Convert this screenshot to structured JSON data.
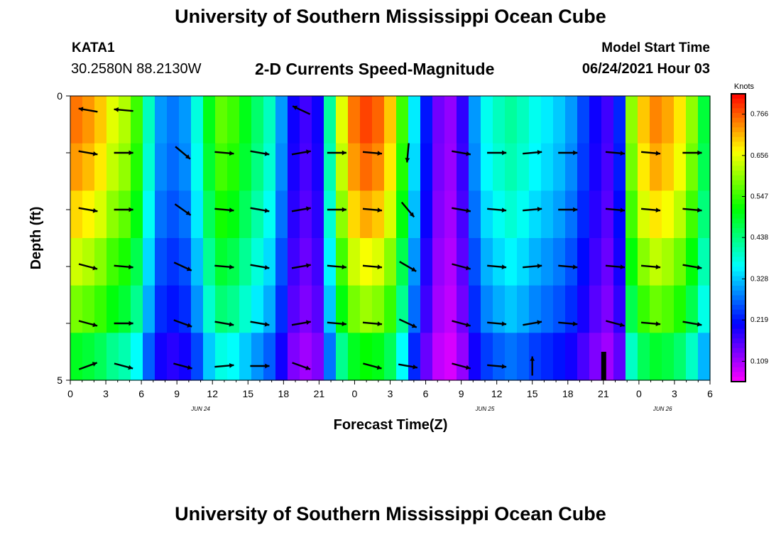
{
  "titles": {
    "top": "University of Southern Mississippi Ocean Cube",
    "bottom": "University of Southern Mississippi Ocean Cube",
    "station": "KATA1",
    "coords": "30.2580N  88.2130W",
    "subtitle": "2-D Currents Speed-Magnitude",
    "model_label": "Model Start Time",
    "model_time": "06/24/2021 Hour 03"
  },
  "chart_data": {
    "type": "heatmap",
    "title": "2-D Currents Speed-Magnitude",
    "xlabel": "Forecast Time(Z)",
    "ylabel": "Depth (ft)",
    "colorbar_label": "Knots",
    "colorbar_ticks": [
      "0.766",
      "0.656",
      "0.547",
      "0.438",
      "0.328",
      "0.219",
      "0.109"
    ],
    "color_range": [
      0.055,
      0.82
    ],
    "x_range_hours": [
      0,
      54
    ],
    "y_range": [
      0,
      5
    ],
    "x_tick_labels": [
      "0",
      "3",
      "6",
      "9",
      "12",
      "15",
      "18",
      "21",
      "0",
      "3",
      "6",
      "9",
      "12",
      "15",
      "18",
      "21",
      "0",
      "3",
      "6"
    ],
    "date_labels": [
      {
        "hour": 11,
        "text": "JUN 24"
      },
      {
        "hour": 35,
        "text": "JUN 25"
      },
      {
        "hour": 50,
        "text": "JUN 26"
      }
    ],
    "y_tick_labels": [
      {
        "depth": 0,
        "text": "0"
      },
      {
        "depth": 5,
        "text": "5"
      }
    ],
    "depth_levels": [
      0.25,
      1,
      2,
      3,
      4,
      4.75
    ],
    "speed_columns": [
      0.75,
      0.73,
      0.7,
      0.65,
      0.62,
      0.55,
      0.4,
      0.3,
      0.28,
      0.3,
      0.38,
      0.5,
      0.57,
      0.55,
      0.5,
      0.45,
      0.4,
      0.3,
      0.2,
      0.17,
      0.2,
      0.42,
      0.65,
      0.75,
      0.78,
      0.76,
      0.7,
      0.55,
      0.35,
      0.22,
      0.14,
      0.12,
      0.18,
      0.3,
      0.37,
      0.4,
      0.42,
      0.4,
      0.37,
      0.35,
      0.33,
      0.3,
      0.25,
      0.2,
      0.17,
      0.23,
      0.6,
      0.7,
      0.74,
      0.72,
      0.68,
      0.6,
      0.48
    ],
    "depth_decay": [
      1.0,
      0.97,
      0.92,
      0.85,
      0.78,
      0.66
    ],
    "vector_hours": [
      1.5,
      4.5,
      9.5,
      13,
      16,
      19.5,
      22.5,
      25.5,
      28.5,
      33,
      36,
      39,
      42,
      46,
      49,
      52.5
    ],
    "vector_max_hour": 54,
    "vectors_deg": [
      [
        190,
        185,
        null,
        null,
        null,
        205,
        null,
        null,
        null,
        null,
        null,
        null,
        null,
        null,
        null,
        null
      ],
      [
        10,
        0,
        40,
        5,
        10,
        350,
        0,
        5,
        95,
        10,
        0,
        355,
        0,
        5,
        5,
        0
      ],
      [
        10,
        0,
        35,
        5,
        10,
        350,
        0,
        5,
        50,
        10,
        5,
        355,
        0,
        5,
        5,
        5
      ],
      [
        15,
        5,
        25,
        5,
        10,
        350,
        5,
        5,
        30,
        15,
        5,
        355,
        5,
        5,
        5,
        10
      ],
      [
        15,
        0,
        20,
        10,
        10,
        350,
        5,
        5,
        25,
        15,
        5,
        350,
        5,
        15,
        5,
        10
      ],
      [
        340,
        15,
        15,
        355,
        0,
        20,
        null,
        15,
        10,
        15,
        5,
        270,
        null,
        null,
        null,
        null
      ]
    ],
    "vector_units": "deg clockwise from east (toward)",
    "vector_length": 0.82
  }
}
